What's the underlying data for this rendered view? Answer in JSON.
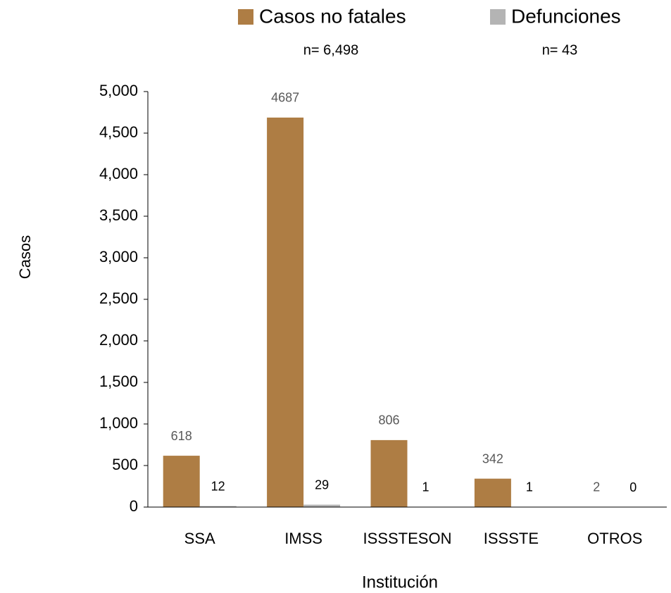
{
  "chart_data": {
    "type": "bar",
    "x_label": "Institución",
    "y_label": "Casos",
    "categories": [
      "SSA",
      "IMSS",
      "ISSSTESON",
      "ISSSTE",
      "OTROS"
    ],
    "series": [
      {
        "name": "Casos no fatales",
        "color": "#ae7d44",
        "values": [
          618,
          4687,
          806,
          342,
          2
        ],
        "annotation": "n= 6,498",
        "label_color": "#595959"
      },
      {
        "name": "Defunciones",
        "color": "#b4b4b4",
        "values": [
          12,
          29,
          1,
          1,
          0
        ],
        "annotation": "n= 43",
        "label_color": "#000000"
      }
    ],
    "ylim": [
      0,
      5000
    ],
    "yticks": [
      0,
      500,
      {
        "value": 1000,
        "label": "1,000"
      },
      {
        "value": 1500,
        "label": "1,500"
      },
      {
        "value": 2000,
        "label": "2,000"
      },
      {
        "value": 2500,
        "label": "2,500"
      },
      {
        "value": 3000,
        "label": "3,000"
      },
      {
        "value": 3500,
        "label": "3,500"
      },
      {
        "value": 4000,
        "label": "4,000"
      },
      {
        "value": 4500,
        "label": "4,500"
      },
      {
        "value": 5000,
        "label": "5,000"
      }
    ],
    "grid": false
  }
}
